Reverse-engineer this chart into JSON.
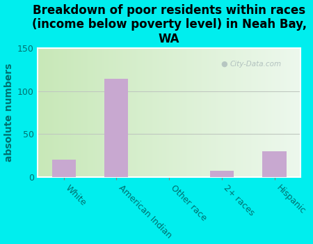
{
  "categories": [
    "White",
    "American Indian",
    "Other race",
    "2+ races",
    "Hispanic"
  ],
  "values": [
    20,
    115,
    0,
    7,
    30
  ],
  "bar_color": "#c8a8d0",
  "title": "Breakdown of poor residents within races\n(income below poverty level) in Neah Bay,\nWA",
  "ylabel": "absolute numbers",
  "ylim": [
    0,
    150
  ],
  "yticks": [
    0,
    50,
    100,
    150
  ],
  "background_color": "#00EEEE",
  "plot_bg_left": "#c8e8b8",
  "plot_bg_right": "#edf8ed",
  "watermark": "City-Data.com",
  "title_fontsize": 12,
  "ylabel_fontsize": 10,
  "tick_fontsize": 9,
  "label_color": "#007070"
}
